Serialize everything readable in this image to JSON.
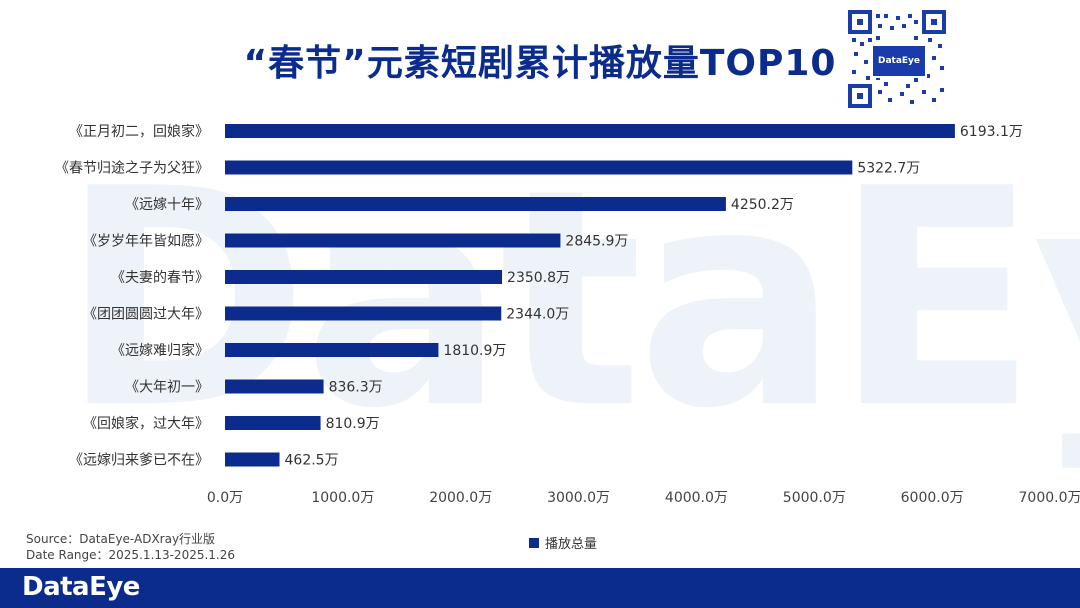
{
  "header": {
    "title": "“春节”元素短剧累计播放量TOP10",
    "watermark": "DataEye",
    "qr_logo_text": "DataEye"
  },
  "footer": {
    "source": "Source：DataEye-ADXray行业版",
    "date_range": "Date Range：2025.1.13-2025.1.26",
    "brand": "DataEye"
  },
  "colors": {
    "bar": "#0b2c8c",
    "accent": "#0b2c8c"
  },
  "chart_data": {
    "type": "bar",
    "orientation": "horizontal",
    "title": "“春节”元素短剧累计播放量TOP10",
    "categories": [
      "《正月初二，回娘家》",
      "《春节归途之子为父狂》",
      "《远嫁十年》",
      "《岁岁年年皆如愿》",
      "《夫妻的春节》",
      "《团团圆圆过大年》",
      "《远嫁难归家》",
      "《大年初一》",
      "《回娘家，过大年》",
      "《远嫁归来爹已不在》"
    ],
    "series": [
      {
        "name": "播放总量",
        "values": [
          6193.1,
          5322.7,
          4250.2,
          2845.9,
          2350.8,
          2344.0,
          1810.9,
          836.3,
          810.9,
          462.5
        ]
      }
    ],
    "data_labels": [
      "6193.1万",
      "5322.7万",
      "4250.2万",
      "2845.9万",
      "2350.8万",
      "2344.0万",
      "1810.9万",
      "836.3万",
      "810.9万",
      "462.5万"
    ],
    "x_ticks": [
      "0.0万",
      "1000.0万",
      "2000.0万",
      "3000.0万",
      "4000.0万",
      "5000.0万",
      "6000.0万",
      "7000.0万"
    ],
    "xlim": [
      0,
      7000
    ],
    "grid": false,
    "legend_position": "bottom"
  }
}
